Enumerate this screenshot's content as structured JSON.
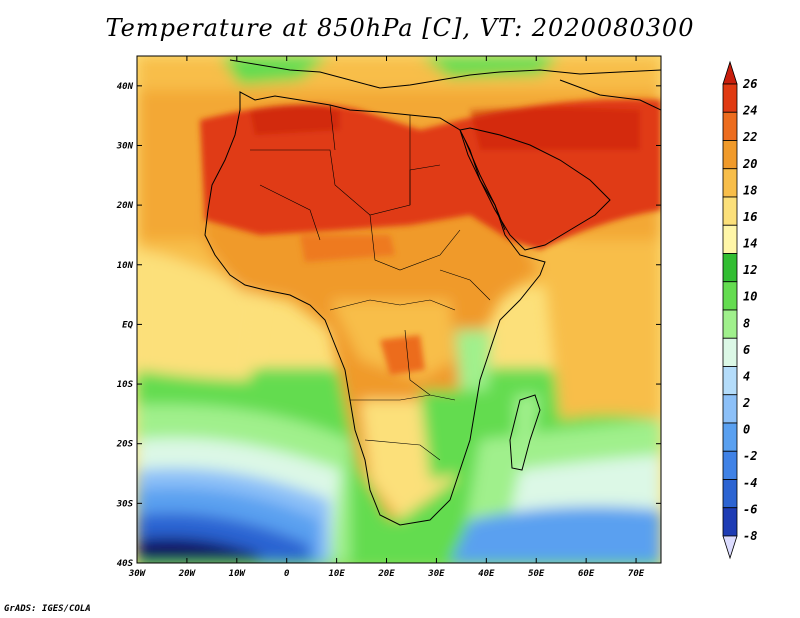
{
  "title": "Temperature at 850hPa [C], VT: 2020080300",
  "credit": "GrADS: IGES/COLA",
  "map": {
    "lon_range": [
      -30,
      75
    ],
    "lat_range": [
      -40,
      45
    ],
    "lon_ticks": [
      "30W",
      "20W",
      "10W",
      "0",
      "10E",
      "20E",
      "30E",
      "40E",
      "50E",
      "60E",
      "70E"
    ],
    "lat_ticks": [
      "40S",
      "30S",
      "20S",
      "10S",
      "EQ",
      "10N",
      "20N",
      "30N",
      "40N"
    ]
  },
  "colorbar": {
    "labels": [
      "-8",
      "-6",
      "-4",
      "-2",
      "0",
      "2",
      "4",
      "6",
      "8",
      "10",
      "12",
      "14",
      "16",
      "18",
      "20",
      "22",
      "24",
      "26"
    ],
    "colors": [
      "#101060",
      "#1e3cb4",
      "#2c64d2",
      "#4082e6",
      "#5aa0f0",
      "#8cc0f8",
      "#b4dcfa",
      "#dcf8e6",
      "#a0f08c",
      "#64dc50",
      "#32be32",
      "#fff6a8",
      "#fce07a",
      "#f8be4a",
      "#f09a2a",
      "#ec6c1e",
      "#e03a12",
      "#c81e0c"
    ]
  }
}
